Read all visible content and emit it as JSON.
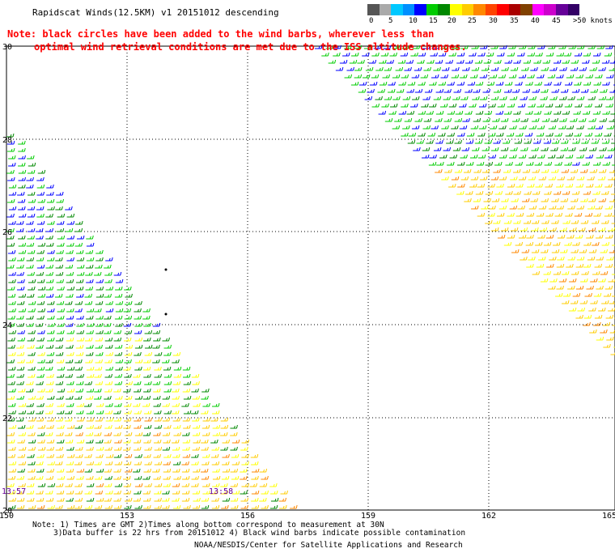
{
  "title": "Rapidscat Winds(12.5KM) v1 20151012 descending",
  "notes": [
    "Note: black circles have been added to the wind barbs, wherever less than",
    "optimal wind retrieval conditions are met due to the ISS altitude changes."
  ],
  "color_scale": {
    "unit_label": ">50 knots",
    "ticks": [
      "0",
      "5",
      "10",
      "15",
      "20",
      "25",
      "30",
      "35",
      "40",
      "45"
    ],
    "colors": [
      "#555555",
      "#aaaaaa",
      "#00c8ff",
      "#0090ff",
      "#0000ff",
      "#00cc00",
      "#008800",
      "#ffff00",
      "#ffcc00",
      "#ff8800",
      "#ff4400",
      "#ff0000",
      "#aa0000",
      "#804000",
      "#ff00ff",
      "#cc00cc",
      "#660099",
      "#330066"
    ]
  },
  "map": {
    "lon_ticks": [
      "150",
      "153",
      "156",
      "159",
      "162",
      "165"
    ],
    "lat_ticks": [
      "30",
      "28",
      "26",
      "24",
      "22",
      "20"
    ],
    "time_labels": [
      "13:57",
      "13:58"
    ]
  },
  "footer": {
    "line1": "Note: 1) Times are GMT 2)Times along bottom correspond to measurement at 30N",
    "line2": "3)Data buffer is 22 hrs from 20151012 4) Black wind barbs indicate possible contamination",
    "credit": "NOAA/NESDIS/Center for Satellite Applications and Research"
  }
}
